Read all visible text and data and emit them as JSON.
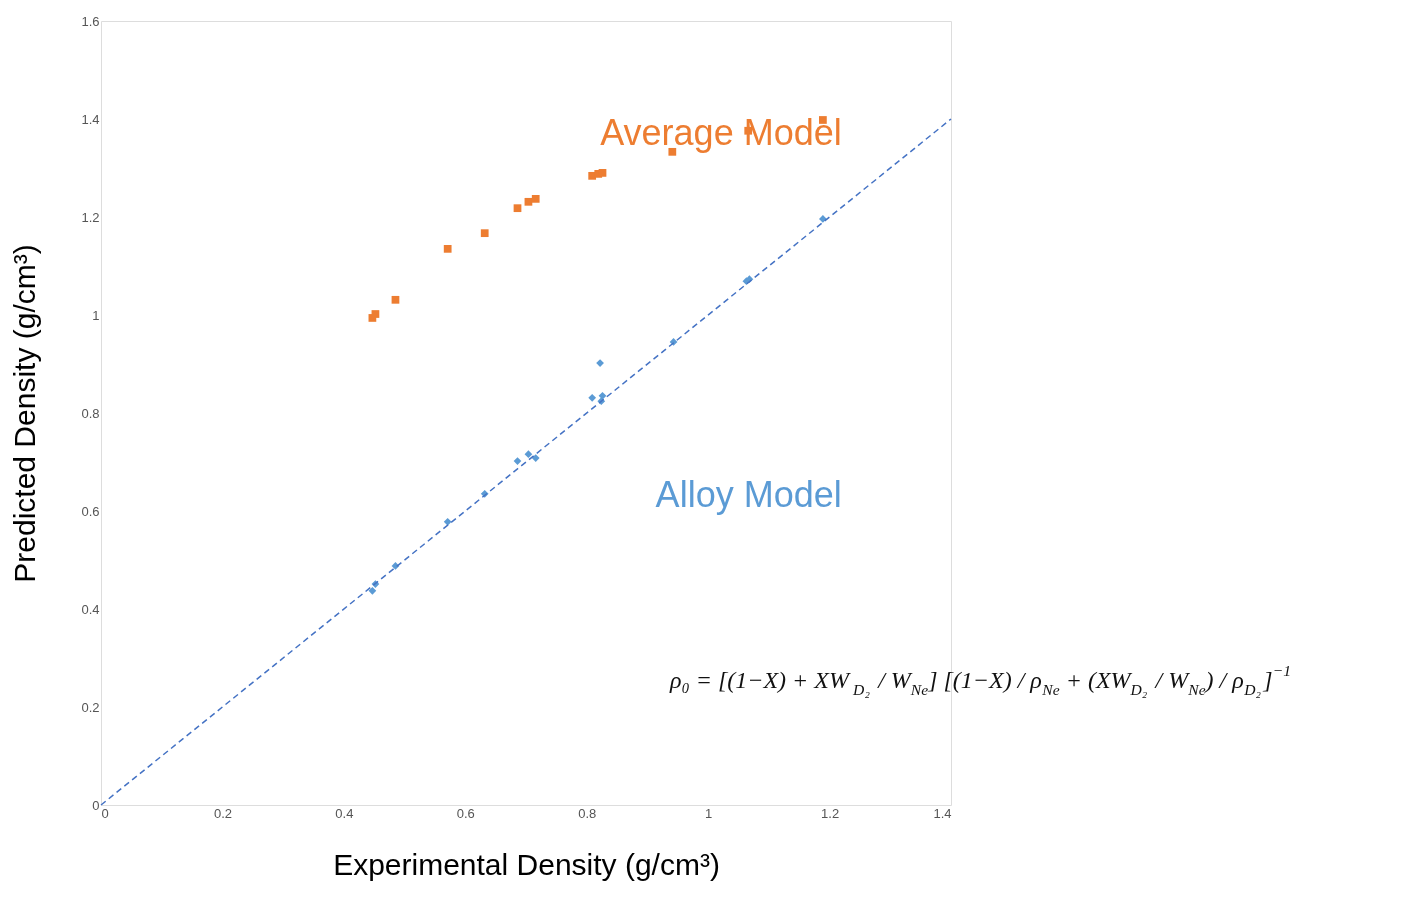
{
  "chart_data": {
    "type": "scatter",
    "xlabel": "Experimental Density (g/cm³)",
    "ylabel": "Predicted Density (g/cm³)",
    "xlim": [
      0,
      1.4
    ],
    "xticks": [
      0,
      0.2,
      0.4,
      0.6,
      0.8,
      1,
      1.2,
      1.4
    ],
    "ylim": [
      0,
      1.6
    ],
    "yticks": [
      0,
      0.2,
      0.4,
      0.6,
      0.8,
      1,
      1.2,
      1.4,
      1.6
    ],
    "grid": false,
    "legend": false,
    "series": [
      {
        "name": "Average Model",
        "color": "#ed7d31",
        "marker": "square",
        "x": [
          0.447,
          0.452,
          0.485,
          0.571,
          0.632,
          0.686,
          0.704,
          0.716,
          0.809,
          0.819,
          0.826,
          0.941,
          1.066,
          1.189
        ],
        "values": [
          0.994,
          1.002,
          1.031,
          1.135,
          1.167,
          1.218,
          1.231,
          1.237,
          1.284,
          1.288,
          1.29,
          1.333,
          1.376,
          1.398
        ]
      },
      {
        "name": "Alloy Model",
        "color": "#5b9bd5",
        "marker": "diamond",
        "x": [
          0.447,
          0.452,
          0.485,
          0.571,
          0.632,
          0.686,
          0.704,
          0.716,
          0.809,
          0.822,
          0.824,
          0.826,
          0.943,
          1.063,
          1.068,
          1.189
        ],
        "values": [
          0.437,
          0.451,
          0.488,
          0.578,
          0.635,
          0.702,
          0.716,
          0.708,
          0.831,
          0.902,
          0.824,
          0.835,
          0.945,
          1.069,
          1.073,
          1.196
        ]
      },
      {
        "type": "line",
        "color": "#4472c4",
        "line_style": "dashed",
        "marker": "none",
        "x": [
          0,
          1.4
        ],
        "values": [
          0,
          1.4
        ]
      }
    ],
    "annotations": [
      "ρ₀ = [(1−X) + XW$_{D₂}$ / W$_{Ne}$] [(1−X) / ρ$_{Ne}$ + (XW$_{D₂}$ / W$_{Ne}$) / ρ$_{D₂}$]$^{−1}$"
    ]
  }
}
